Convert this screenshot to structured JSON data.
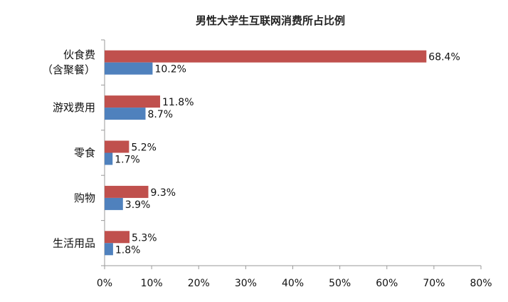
{
  "chart_data": {
    "type": "bar",
    "orientation": "horizontal",
    "title": "男性大学生互联网消费所占比例",
    "categories": [
      [
        "伙食费",
        "（含聚餐）"
      ],
      [
        "游戏费用"
      ],
      [
        "零食"
      ],
      [
        "购物"
      ],
      [
        "生活用品"
      ]
    ],
    "series": [
      {
        "color": "#c0504d",
        "values": [
          68.4,
          11.8,
          5.2,
          9.3,
          5.3
        ],
        "labels": [
          "68.4%",
          "11.8%",
          "5.2%",
          "9.3%",
          "5.3%"
        ]
      },
      {
        "color": "#4f81bd",
        "values": [
          10.2,
          8.7,
          1.7,
          3.9,
          1.8
        ],
        "labels": [
          "10.2%",
          "8.7%",
          "1.7%",
          "3.9%",
          "1.8%"
        ]
      }
    ],
    "xlim": [
      0,
      80
    ],
    "xticks": [
      0,
      10,
      20,
      30,
      40,
      50,
      60,
      70,
      80
    ],
    "xtick_labels": [
      "0%",
      "10%",
      "20%",
      "30%",
      "40%",
      "50%",
      "60%",
      "70%",
      "80%"
    ],
    "grid": false,
    "legend": "none"
  }
}
